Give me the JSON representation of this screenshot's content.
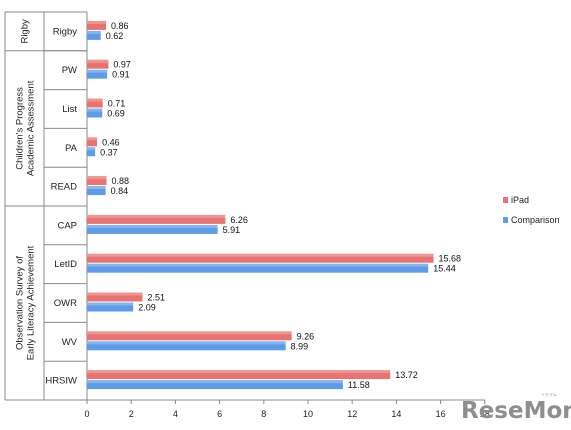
{
  "chart_data": {
    "type": "bar",
    "orientation": "horizontal",
    "categories": [
      "Rigby",
      "PW",
      "List",
      "PA",
      "READ",
      "CAP",
      "LetID",
      "OWR",
      "WV",
      "HRSIW"
    ],
    "groups": [
      {
        "label": "Rigby",
        "categories": [
          "Rigby"
        ]
      },
      {
        "label": "Children's Progress Academic Assessment",
        "categories": [
          "PW",
          "List",
          "PA",
          "READ"
        ]
      },
      {
        "label": "Observation Survey of Early Literacy Achievement",
        "categories": [
          "CAP",
          "LetID",
          "OWR",
          "WV",
          "HRSIW"
        ]
      }
    ],
    "series": [
      {
        "name": "iPad",
        "color": "#e8736f",
        "values": [
          0.86,
          0.97,
          0.71,
          0.46,
          0.88,
          6.26,
          15.68,
          2.51,
          9.26,
          13.72
        ]
      },
      {
        "name": "Comparison",
        "color": "#5c9ce8",
        "values": [
          0.62,
          0.91,
          0.69,
          0.37,
          0.84,
          5.91,
          15.44,
          2.09,
          8.99,
          11.58
        ]
      }
    ],
    "value_labels": {
      "iPad": [
        "0.86",
        "0.97",
        "0.71",
        "0.46",
        "0.88",
        "6.26",
        "15.68",
        "2.51",
        "9.26",
        "13.72"
      ],
      "Comparison": [
        "0.62",
        "0.91",
        "0.69",
        "0.37",
        "0.84",
        "5.91",
        "15.44",
        "2.09",
        "8.99",
        "11.58"
      ]
    },
    "xlim": [
      0,
      18
    ],
    "x_ticks": [
      "0",
      "2",
      "4",
      "6",
      "8",
      "10",
      "12",
      "14",
      "16",
      "18"
    ],
    "legend_position": "right",
    "grid": false
  },
  "watermark": {
    "text": "ReseMom",
    "subtext": "リセマム"
  }
}
